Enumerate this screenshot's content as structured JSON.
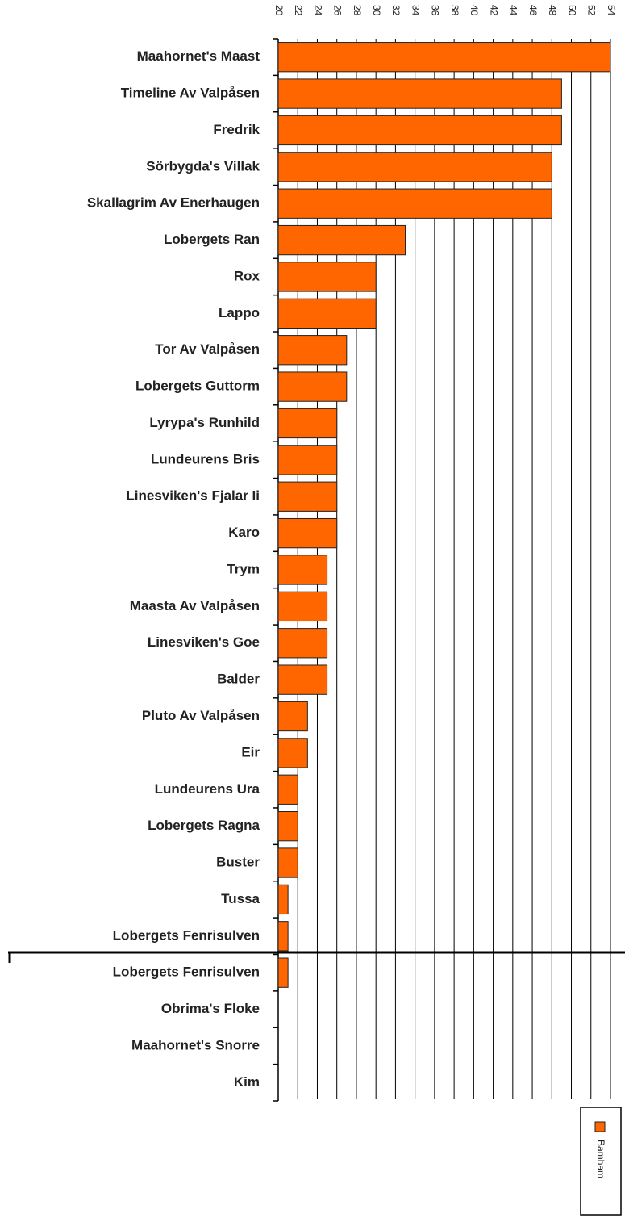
{
  "chart_data": {
    "type": "bar",
    "orientation": "horizontal",
    "categories": [
      "Maahornet's Maast",
      "Timeline Av Valpåsen",
      "Fredrik",
      "Sörbygda's Villak",
      "Skallagrim Av Enerhaugen",
      "Lobergets Ran",
      "Rox",
      "Lappo",
      "Tor Av Valpåsen",
      "Lobergets Guttorm",
      "Lyrypa's Runhild",
      "Lundeurens Bris",
      "Linesviken's Fjalar Ii",
      "Karo",
      "Trym",
      "Maasta Av Valpåsen",
      "Linesviken's Goe",
      "Balder",
      "Pluto Av Valpåsen",
      "Eir",
      "Lundeurens Ura",
      "Lobergets Ragna",
      "Buster",
      "Tussa",
      "Lobergets Fenrisulven",
      "Lobergets Fenrisulven",
      "Obrima's Floke",
      "Maahornet's Snorre",
      "Kim"
    ],
    "series": [
      {
        "name": "Bambam",
        "color": "#ff6600",
        "values": [
          54,
          49,
          49,
          48,
          48,
          33,
          30,
          30,
          27,
          27,
          26,
          26,
          26,
          26,
          25,
          25,
          25,
          25,
          23,
          23,
          22,
          22,
          22,
          21,
          21,
          21,
          20,
          20,
          20
        ]
      }
    ],
    "xlim": [
      20,
      54
    ],
    "xticks": [
      20,
      22,
      24,
      26,
      28,
      30,
      32,
      34,
      36,
      38,
      40,
      42,
      44,
      46,
      48,
      50,
      52,
      54
    ],
    "grid": true,
    "legend": "bottom-right"
  }
}
